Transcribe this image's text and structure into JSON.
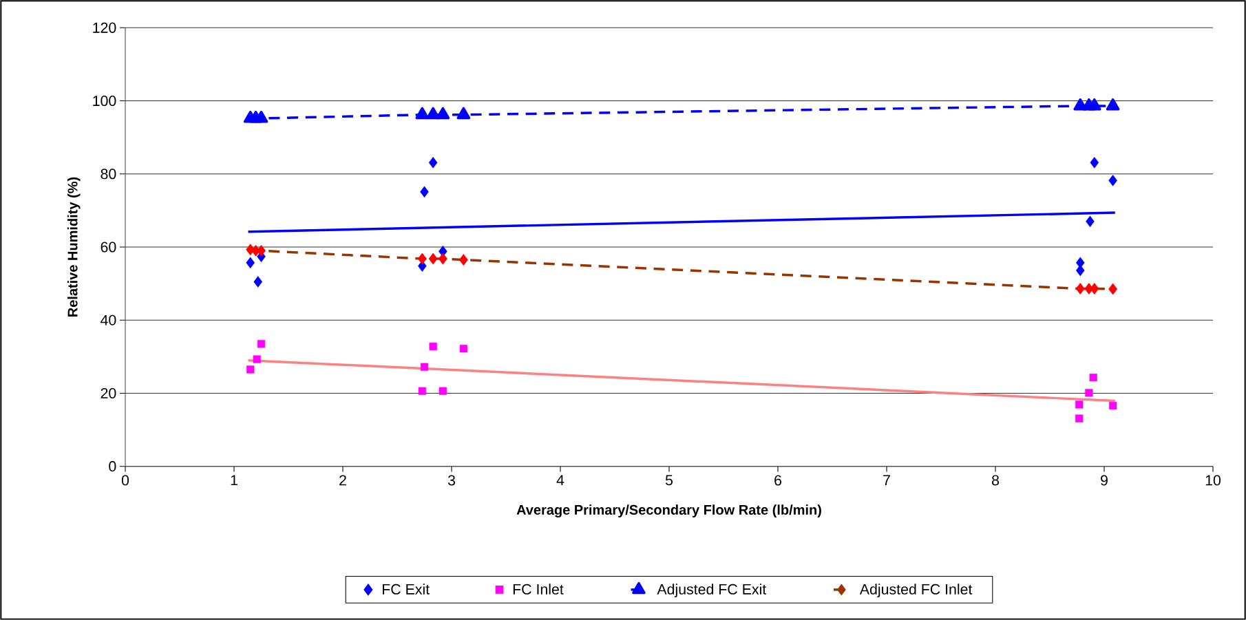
{
  "chart_data": {
    "type": "scatter",
    "xlabel": "Average Primary/Secondary Flow Rate   (lb/min)",
    "ylabel": "Relative Humidity (%)",
    "xlim": [
      0,
      10
    ],
    "xticks": [
      0,
      1,
      2,
      3,
      4,
      5,
      6,
      7,
      8,
      9,
      10
    ],
    "ylim": [
      0,
      120
    ],
    "yticks": [
      0,
      20,
      40,
      60,
      80,
      100,
      120
    ],
    "grid": "y",
    "legend": "bottom",
    "series": [
      {
        "name": "FC Exit",
        "marker": "diamond",
        "color": "#0000ff",
        "x": [
          1.15,
          1.22,
          1.25,
          2.73,
          2.75,
          2.83,
          2.92,
          3.11,
          8.78,
          8.78,
          8.87,
          8.91,
          9.08
        ],
        "values": [
          55.7,
          50.5,
          57.4,
          54.8,
          75.1,
          83.1,
          58.8,
          null,
          55.7,
          53.6,
          67.0,
          83.1,
          78.2
        ]
      },
      {
        "name": "FC Inlet",
        "marker": "square",
        "color": "#ff00ff",
        "x": [
          1.15,
          1.21,
          1.25,
          2.73,
          2.75,
          2.83,
          2.92,
          3.11,
          8.77,
          8.77,
          8.86,
          8.9,
          9.08
        ],
        "values": [
          26.5,
          29.3,
          33.5,
          20.6,
          27.2,
          32.8,
          20.6,
          32.2,
          13.1,
          16.9,
          20.1,
          24.3,
          16.6
        ]
      },
      {
        "name": "Adjusted FC Exit",
        "type": "line",
        "marker": "triangle",
        "line_style": "dashed",
        "color": "#0000ff",
        "x": [
          1.15,
          1.2,
          1.25,
          2.73,
          2.83,
          2.92,
          3.11,
          8.78,
          8.86,
          8.91,
          9.08
        ],
        "values": [
          95.2,
          95.2,
          95.2,
          96.2,
          96.2,
          96.2,
          96.2,
          98.6,
          98.6,
          98.6,
          98.6
        ]
      },
      {
        "name": "Adjusted FC Inlet",
        "type": "line",
        "marker": "diamond",
        "line_style": "dashed",
        "color": "#993300",
        "colors": [
          "#ff0000",
          "#ff0000",
          "#ff0000",
          "#ff0000",
          "#ff0000",
          "#ff0000",
          "#ff0000",
          "#ff0000",
          "#ff0000",
          "#ff0000",
          "#ff0000"
        ],
        "x": [
          1.15,
          1.2,
          1.25,
          2.73,
          2.83,
          2.92,
          3.11,
          8.78,
          8.86,
          8.91,
          9.08
        ],
        "values": [
          59.3,
          59.0,
          59.0,
          56.8,
          56.8,
          56.8,
          56.5,
          48.6,
          48.6,
          48.6,
          48.5
        ]
      },
      {
        "type": "line",
        "marker": "none",
        "line_style": "solid",
        "color": "#0000ff",
        "x": [
          1.13,
          9.1
        ],
        "values": [
          64.2,
          69.4
        ]
      },
      {
        "type": "line",
        "marker": "none",
        "line_style": "solid",
        "color": "#ff8080",
        "x": [
          1.13,
          9.1
        ],
        "values": [
          29.0,
          17.9
        ]
      }
    ]
  }
}
